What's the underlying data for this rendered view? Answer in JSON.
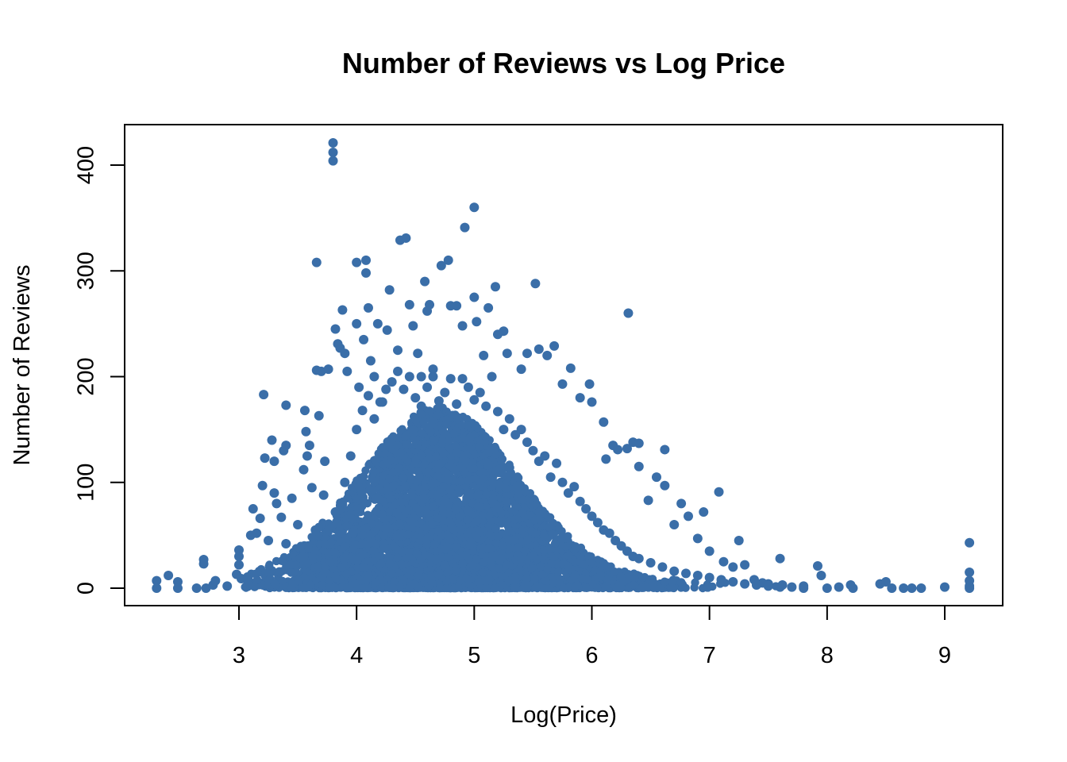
{
  "chart_data": {
    "type": "scatter",
    "title": "Number of Reviews vs Log Price",
    "xlabel": "Log(Price)",
    "ylabel": "Number of Reviews",
    "xlim": [
      2.3,
      9.2
    ],
    "ylim": [
      0,
      420
    ],
    "x_ticks": [
      3,
      4,
      5,
      6,
      7,
      8,
      9
    ],
    "y_ticks": [
      0,
      100,
      200,
      300,
      400
    ],
    "grid": false,
    "legend": "none",
    "point_color": "#3A6EA8",
    "series": [
      {
        "points": [
          [
            2.3,
            0
          ],
          [
            2.3,
            7
          ],
          [
            2.4,
            12
          ],
          [
            2.48,
            6
          ],
          [
            2.48,
            0
          ],
          [
            2.64,
            0
          ],
          [
            2.7,
            27
          ],
          [
            2.7,
            23
          ],
          [
            2.72,
            0
          ],
          [
            2.78,
            3
          ],
          [
            2.8,
            7
          ],
          [
            2.9,
            2
          ],
          [
            2.98,
            13
          ],
          [
            3.0,
            36
          ],
          [
            3.0,
            30
          ],
          [
            3.0,
            22
          ],
          [
            3.02,
            9
          ],
          [
            3.1,
            50
          ],
          [
            3.12,
            75
          ],
          [
            3.15,
            52
          ],
          [
            3.18,
            66
          ],
          [
            3.21,
            183
          ],
          [
            3.22,
            123
          ],
          [
            3.2,
            97
          ],
          [
            3.25,
            45
          ],
          [
            3.28,
            140
          ],
          [
            3.3,
            120
          ],
          [
            3.3,
            90
          ],
          [
            3.32,
            80
          ],
          [
            3.36,
            67
          ],
          [
            3.38,
            130
          ],
          [
            3.4,
            173
          ],
          [
            3.4,
            135
          ],
          [
            3.45,
            85
          ],
          [
            3.5,
            60
          ],
          [
            3.55,
            112
          ],
          [
            3.56,
            168
          ],
          [
            3.57,
            148
          ],
          [
            3.58,
            125
          ],
          [
            3.6,
            135
          ],
          [
            3.62,
            95
          ],
          [
            3.66,
            206
          ],
          [
            3.66,
            308
          ],
          [
            3.68,
            163
          ],
          [
            3.7,
            205
          ],
          [
            3.73,
            120
          ],
          [
            3.76,
            207
          ],
          [
            3.8,
            421
          ],
          [
            3.8,
            412
          ],
          [
            3.8,
            404
          ],
          [
            3.82,
            245
          ],
          [
            3.84,
            231
          ],
          [
            3.86,
            227
          ],
          [
            3.88,
            263
          ],
          [
            3.9,
            222
          ],
          [
            3.92,
            205
          ],
          [
            4.0,
            250
          ],
          [
            4.0,
            308
          ],
          [
            4.02,
            190
          ],
          [
            4.06,
            235
          ],
          [
            4.08,
            310
          ],
          [
            4.1,
            265
          ],
          [
            4.08,
            298
          ],
          [
            4.12,
            215
          ],
          [
            4.15,
            200
          ],
          [
            4.18,
            250
          ],
          [
            4.22,
            176
          ],
          [
            4.26,
            244
          ],
          [
            4.28,
            282
          ],
          [
            4.35,
            225
          ],
          [
            4.37,
            329
          ],
          [
            4.42,
            331
          ],
          [
            4.45,
            268
          ],
          [
            4.48,
            248
          ],
          [
            4.52,
            222
          ],
          [
            4.55,
            200
          ],
          [
            4.58,
            290
          ],
          [
            4.6,
            262
          ],
          [
            4.62,
            268
          ],
          [
            4.65,
            207
          ],
          [
            4.72,
            305
          ],
          [
            4.78,
            310
          ],
          [
            4.8,
            267
          ],
          [
            4.85,
            267
          ],
          [
            4.9,
            248
          ],
          [
            4.92,
            341
          ],
          [
            5.0,
            360
          ],
          [
            5.0,
            275
          ],
          [
            5.02,
            252
          ],
          [
            5.08,
            220
          ],
          [
            5.12,
            265
          ],
          [
            5.18,
            285
          ],
          [
            5.2,
            240
          ],
          [
            5.25,
            243
          ],
          [
            5.28,
            222
          ],
          [
            5.4,
            207
          ],
          [
            5.45,
            222
          ],
          [
            5.52,
            288
          ],
          [
            5.55,
            226
          ],
          [
            5.62,
            220
          ],
          [
            5.68,
            229
          ],
          [
            5.75,
            193
          ],
          [
            5.82,
            208
          ],
          [
            5.9,
            180
          ],
          [
            5.98,
            193
          ],
          [
            6.0,
            176
          ],
          [
            6.1,
            157
          ],
          [
            6.12,
            122
          ],
          [
            6.18,
            135
          ],
          [
            6.22,
            131
          ],
          [
            6.31,
            260
          ],
          [
            6.3,
            132
          ],
          [
            6.35,
            138
          ],
          [
            6.4,
            137
          ],
          [
            6.4,
            115
          ],
          [
            6.48,
            83
          ],
          [
            6.55,
            105
          ],
          [
            6.62,
            131
          ],
          [
            6.62,
            97
          ],
          [
            6.7,
            60
          ],
          [
            6.76,
            80
          ],
          [
            6.82,
            68
          ],
          [
            6.9,
            47
          ],
          [
            6.95,
            72
          ],
          [
            7.0,
            35
          ],
          [
            7.08,
            91
          ],
          [
            7.12,
            25
          ],
          [
            7.2,
            20
          ],
          [
            7.25,
            45
          ],
          [
            7.3,
            22
          ],
          [
            7.38,
            8
          ],
          [
            7.45,
            5
          ],
          [
            7.5,
            4
          ],
          [
            7.6,
            28
          ],
          [
            7.62,
            3
          ],
          [
            7.8,
            2
          ],
          [
            7.92,
            21
          ],
          [
            7.95,
            12
          ],
          [
            8.0,
            0
          ],
          [
            8.1,
            1
          ],
          [
            8.2,
            3
          ],
          [
            8.22,
            0
          ],
          [
            8.45,
            4
          ],
          [
            8.5,
            6
          ],
          [
            8.55,
            0
          ],
          [
            8.65,
            0
          ],
          [
            8.72,
            0
          ],
          [
            8.8,
            0
          ],
          [
            9.0,
            1
          ],
          [
            9.21,
            43
          ],
          [
            9.21,
            15
          ],
          [
            9.21,
            7
          ],
          [
            9.21,
            2
          ],
          [
            9.21,
            0
          ],
          [
            3.4,
            42
          ],
          [
            3.55,
            30
          ],
          [
            3.65,
            55
          ],
          [
            3.72,
            88
          ],
          [
            3.82,
            72
          ],
          [
            3.9,
            100
          ],
          [
            3.95,
            125
          ],
          [
            4.0,
            150
          ],
          [
            4.05,
            168
          ],
          [
            4.1,
            182
          ],
          [
            4.15,
            160
          ],
          [
            4.2,
            176
          ],
          [
            4.25,
            188
          ],
          [
            4.3,
            195
          ],
          [
            4.35,
            205
          ],
          [
            4.4,
            188
          ],
          [
            4.45,
            200
          ],
          [
            4.5,
            180
          ],
          [
            4.55,
            172
          ],
          [
            4.6,
            190
          ],
          [
            4.65,
            200
          ],
          [
            4.7,
            177
          ],
          [
            4.75,
            185
          ],
          [
            4.8,
            198
          ],
          [
            4.85,
            174
          ],
          [
            4.9,
            198
          ],
          [
            4.95,
            190
          ],
          [
            5.0,
            178
          ],
          [
            5.05,
            185
          ],
          [
            5.1,
            172
          ],
          [
            5.15,
            200
          ],
          [
            5.2,
            167
          ],
          [
            5.25,
            150
          ],
          [
            5.3,
            160
          ],
          [
            5.35,
            145
          ],
          [
            5.4,
            150
          ],
          [
            5.45,
            138
          ],
          [
            5.5,
            130
          ],
          [
            5.55,
            120
          ],
          [
            5.6,
            125
          ],
          [
            5.65,
            105
          ],
          [
            5.7,
            118
          ],
          [
            5.75,
            100
          ],
          [
            5.8,
            90
          ],
          [
            5.85,
            96
          ],
          [
            5.9,
            82
          ],
          [
            5.95,
            75
          ],
          [
            6.0,
            68
          ],
          [
            6.05,
            62
          ],
          [
            6.1,
            55
          ],
          [
            6.15,
            52
          ],
          [
            6.2,
            45
          ],
          [
            6.25,
            40
          ],
          [
            6.3,
            35
          ],
          [
            6.35,
            30
          ],
          [
            6.4,
            28
          ],
          [
            6.5,
            24
          ],
          [
            6.6,
            20
          ],
          [
            6.7,
            16
          ],
          [
            6.8,
            14
          ],
          [
            6.9,
            12
          ],
          [
            7.0,
            10
          ],
          [
            7.1,
            8
          ],
          [
            7.2,
            6
          ],
          [
            7.3,
            4
          ],
          [
            7.4,
            3
          ],
          [
            7.5,
            2
          ],
          [
            7.6,
            1
          ],
          [
            7.7,
            1
          ],
          [
            7.8,
            0
          ]
        ]
      }
    ]
  }
}
